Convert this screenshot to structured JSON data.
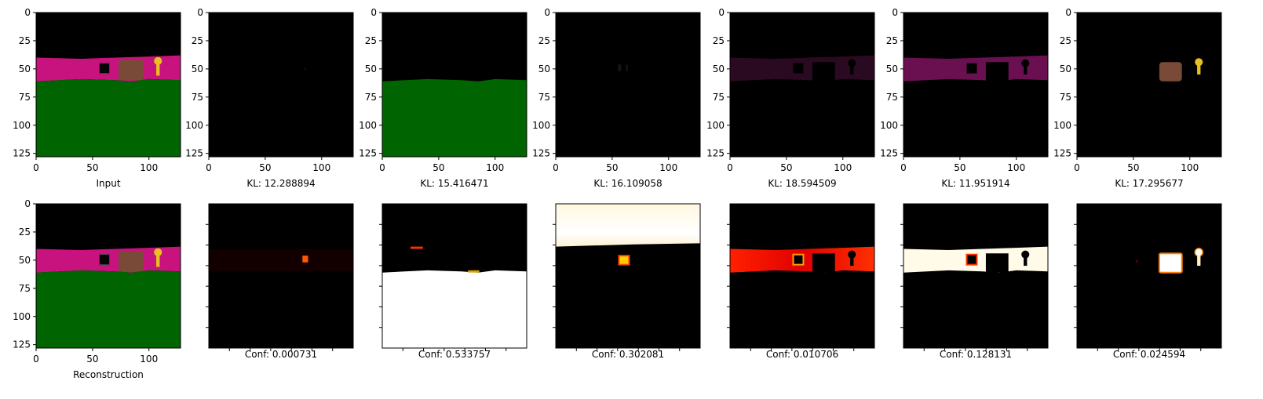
{
  "chart_data": {
    "type": "image-grid",
    "image_size": [
      128,
      128
    ],
    "colors": {
      "sky": "#000000",
      "wall": "#c8127d",
      "floor": "#006400",
      "box": "#7a4a38",
      "key": "#e8c020",
      "mask_dim": "#2a0a20",
      "mask_mid": "#6a1050"
    },
    "x_ticks": [
      "0",
      "50",
      "100"
    ],
    "y_ticks": [
      "0",
      "25",
      "50",
      "75",
      "100",
      "125"
    ],
    "top_row": [
      {
        "label": "Input",
        "kind": "scene"
      },
      {
        "label": "KL: 12.288894",
        "kind": "mask-empty"
      },
      {
        "label": "KL: 15.416471",
        "kind": "mask-floor"
      },
      {
        "label": "KL: 16.109058",
        "kind": "mask-faint"
      },
      {
        "label": "KL: 18.594509",
        "kind": "mask-wall-dim"
      },
      {
        "label": "KL: 11.951914",
        "kind": "mask-wall"
      },
      {
        "label": "KL: 17.295677",
        "kind": "mask-objects"
      }
    ],
    "bottom_row": [
      {
        "label": "Reconstruction",
        "kind": "scene",
        "value": null
      },
      {
        "label": "Conf: 0.000731",
        "kind": "heat-empty",
        "value": 0.000731
      },
      {
        "label": "Conf: 0.533757",
        "kind": "heat-floor",
        "value": 0.533757
      },
      {
        "label": "Conf: 0.302081",
        "kind": "heat-sky",
        "value": 0.302081
      },
      {
        "label": "Conf: 0.010706",
        "kind": "heat-wall-red",
        "value": 0.010706
      },
      {
        "label": "Conf: 0.128131",
        "kind": "heat-wall",
        "value": 0.128131
      },
      {
        "label": "Conf: 0.024594",
        "kind": "heat-objects",
        "value": 0.024594
      }
    ]
  }
}
